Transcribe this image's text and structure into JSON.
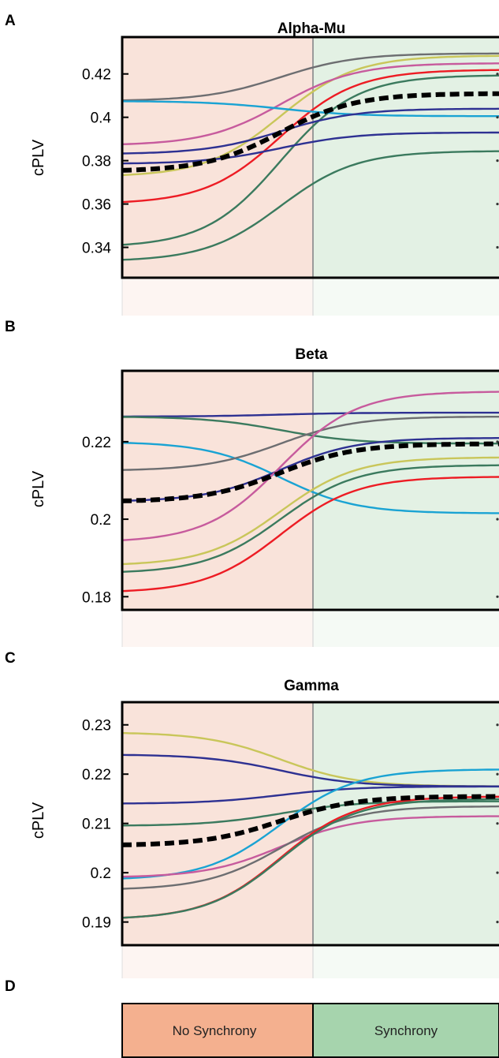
{
  "panels": [
    {
      "letter": "A",
      "title": "Alpha-Mu",
      "ylabel": "cPLV",
      "ticks": [
        "0.42",
        "0.4",
        "0.38",
        "0.36",
        "0.34"
      ],
      "tick_values": [
        0.42,
        0.4,
        0.38,
        0.36,
        0.34
      ],
      "ylim": [
        0.326,
        0.437
      ]
    },
    {
      "letter": "B",
      "title": "Beta",
      "ylabel": "cPLV",
      "ticks": [
        "0.22",
        "0.2",
        "0.18"
      ],
      "tick_values": [
        0.22,
        0.2,
        0.18
      ],
      "ylim": [
        0.1766,
        0.2383
      ]
    },
    {
      "letter": "C",
      "title": "Gamma",
      "ylabel": "cPLV",
      "ticks": [
        "0.23",
        "0.22",
        "0.21",
        "0.2",
        "0.19"
      ],
      "tick_values": [
        0.23,
        0.22,
        0.21,
        0.2,
        0.19
      ],
      "ylim": [
        0.1853,
        0.2346
      ]
    }
  ],
  "legend": {
    "letter": "D",
    "left_label": "No Synchrony",
    "right_label": "Synchrony"
  },
  "colors": {
    "no_sync_bg": "#f9e3da",
    "sync_bg": "#e3f1e4",
    "no_sync_fade": "#fdf5f2",
    "sync_fade": "#f5faf5",
    "no_sync_legend": "#f4b08f",
    "sync_legend": "#a6d4ad"
  },
  "chart_data": [
    {
      "type": "line",
      "title": "Alpha-Mu",
      "ylabel": "cPLV",
      "x_conditions": [
        "No Synchrony",
        "Synchrony"
      ],
      "ylim": [
        0.326,
        0.437
      ],
      "series": [
        {
          "color": "#6d6e71",
          "start": 0.4075,
          "end": 0.4295
        },
        {
          "color": "#c9c65a",
          "start": 0.3725,
          "end": 0.4285
        },
        {
          "color": "#c75b9d",
          "start": 0.387,
          "end": 0.425
        },
        {
          "color": "#ed1c24",
          "start": 0.36,
          "end": 0.422
        },
        {
          "color": "#3b7a5e",
          "start": 0.34,
          "end": 0.4195
        },
        {
          "color": "#1aa3d3",
          "start": 0.4075,
          "end": 0.4005
        },
        {
          "color": "#2e3192",
          "start": 0.383,
          "end": 0.404
        },
        {
          "color": "#2e3192",
          "start": 0.3785,
          "end": 0.393
        },
        {
          "color": "#3b7a5e",
          "start": 0.3335,
          "end": 0.3845
        },
        {
          "color": "#000000",
          "start": 0.375,
          "end": 0.411,
          "style": "dashed",
          "mean": true
        }
      ]
    },
    {
      "type": "line",
      "title": "Beta",
      "ylabel": "cPLV",
      "x_conditions": [
        "No Synchrony",
        "Synchrony"
      ],
      "ylim": [
        0.1766,
        0.2383
      ],
      "series": [
        {
          "color": "#2e3192",
          "start": 0.2265,
          "end": 0.2275
        },
        {
          "color": "#3b7a5e",
          "start": 0.2265,
          "end": 0.2195
        },
        {
          "color": "#1aa3d3",
          "start": 0.22,
          "end": 0.2015
        },
        {
          "color": "#6d6e71",
          "start": 0.2125,
          "end": 0.2265
        },
        {
          "color": "#2e3192",
          "start": 0.2045,
          "end": 0.221
        },
        {
          "color": "#c75b9d",
          "start": 0.194,
          "end": 0.233
        },
        {
          "color": "#c9c65a",
          "start": 0.188,
          "end": 0.216
        },
        {
          "color": "#3b7a5e",
          "start": 0.186,
          "end": 0.214
        },
        {
          "color": "#ed1c24",
          "start": 0.181,
          "end": 0.211
        },
        {
          "color": "#000000",
          "start": 0.2045,
          "end": 0.2195,
          "style": "dashed",
          "mean": true
        }
      ]
    },
    {
      "type": "line",
      "title": "Gamma",
      "ylabel": "cPLV",
      "x_conditions": [
        "No Synchrony",
        "Synchrony"
      ],
      "ylim": [
        0.1853,
        0.2346
      ],
      "series": [
        {
          "color": "#c9c65a",
          "start": 0.2285,
          "end": 0.2175
        },
        {
          "color": "#2e3192",
          "start": 0.224,
          "end": 0.2175
        },
        {
          "color": "#2e3192",
          "start": 0.214,
          "end": 0.2175
        },
        {
          "color": "#3b7a5e",
          "start": 0.2095,
          "end": 0.2145
        },
        {
          "color": "#1aa3d3",
          "start": 0.1985,
          "end": 0.221
        },
        {
          "color": "#c75b9d",
          "start": 0.199,
          "end": 0.2115
        },
        {
          "color": "#6d6e71",
          "start": 0.1965,
          "end": 0.2135
        },
        {
          "color": "#ed1c24",
          "start": 0.1905,
          "end": 0.2155
        },
        {
          "color": "#3b7a5e",
          "start": 0.1905,
          "end": 0.215
        },
        {
          "color": "#000000",
          "start": 0.2055,
          "end": 0.2155,
          "style": "dashed",
          "mean": true
        }
      ]
    }
  ]
}
